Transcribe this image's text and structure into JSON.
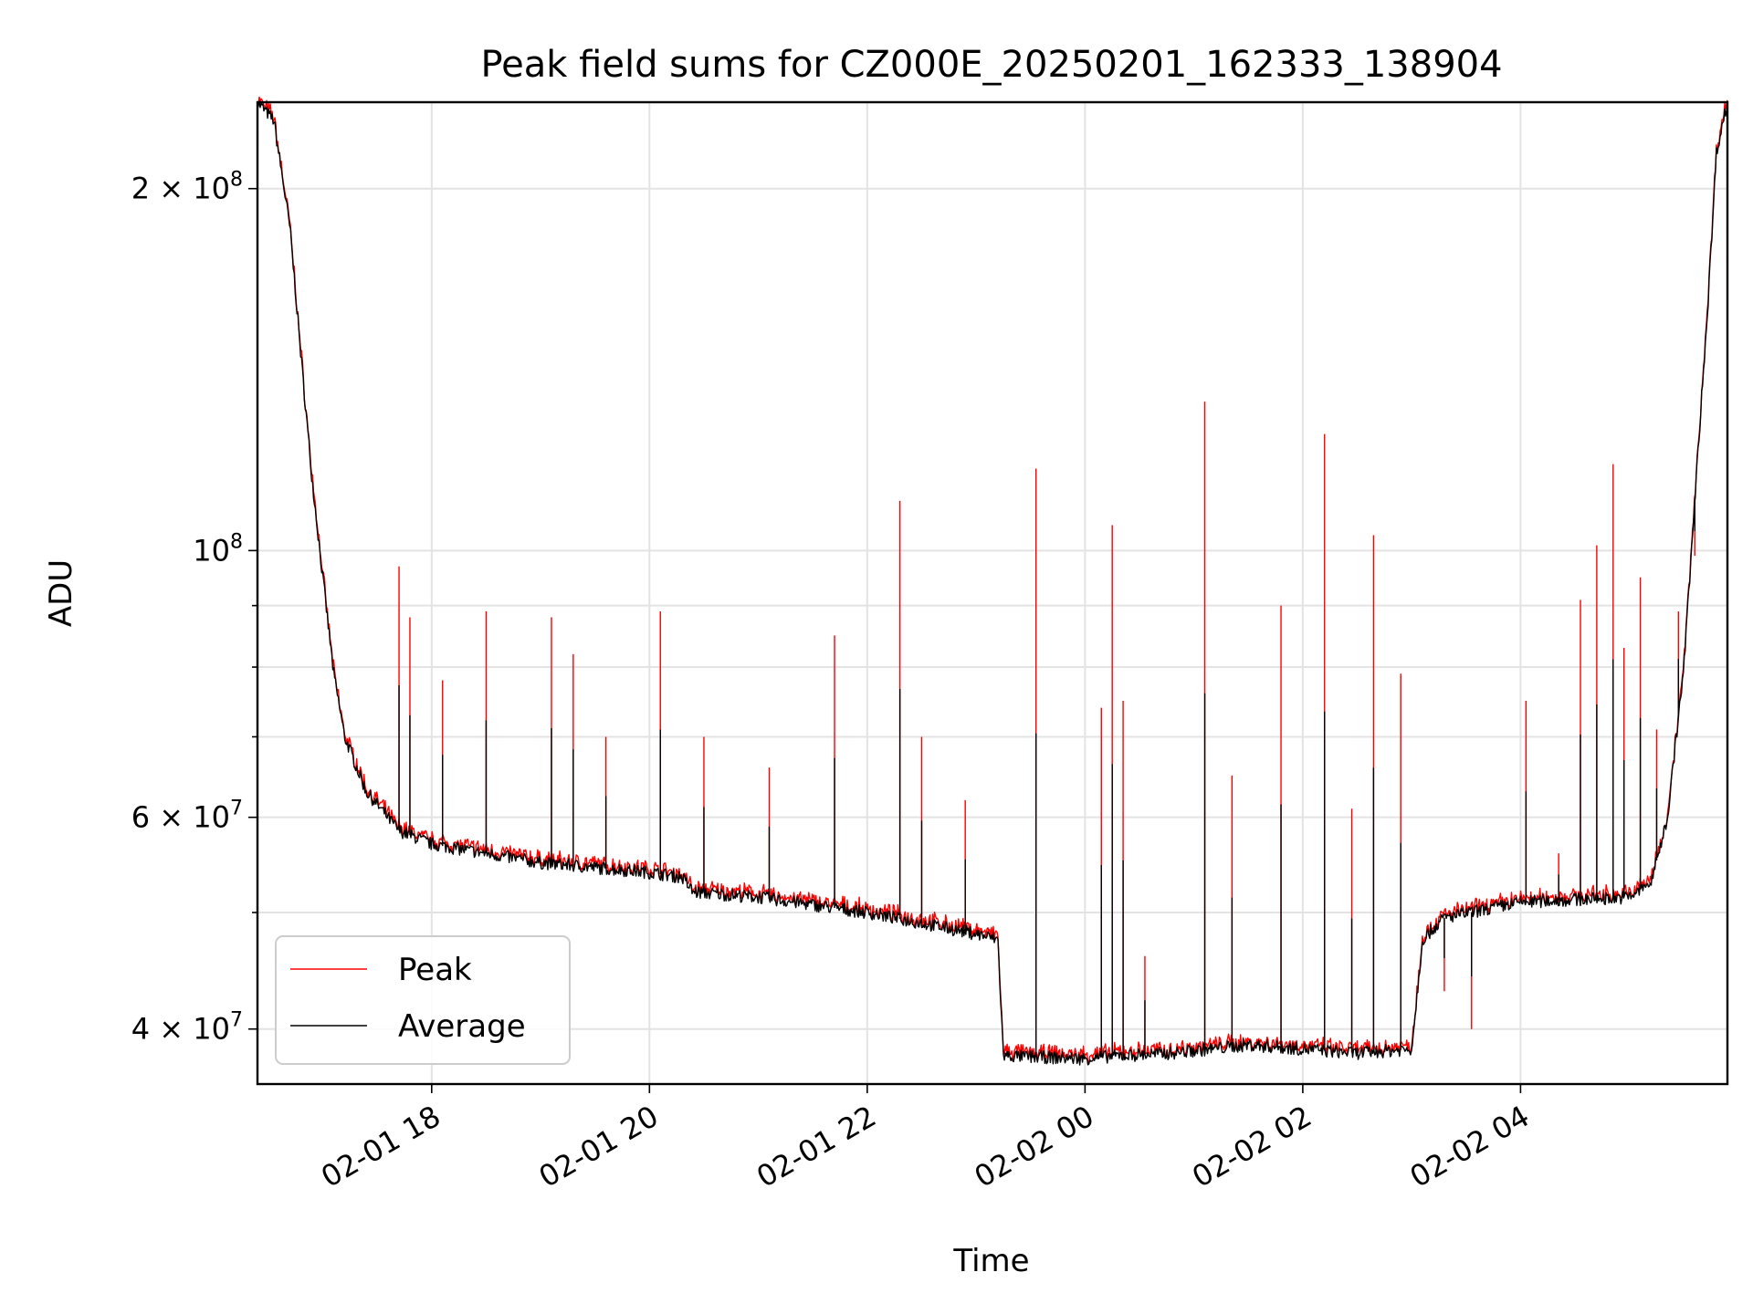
{
  "chart_data": {
    "type": "line",
    "title": "Peak field sums for CZ000E_20250201_162333_138904",
    "xlabel": "Time",
    "ylabel": "ADU",
    "yscale": "log",
    "ylim": [
      36000000,
      236000000
    ],
    "xlim_hours": [
      -1.6,
      11.9
    ],
    "x_tick_labels": [
      "02-01 18",
      "02-01 20",
      "02-01 22",
      "02-02 00",
      "02-02 02",
      "02-02 04"
    ],
    "x_tick_hours": [
      0,
      2,
      4,
      6,
      8,
      10
    ],
    "y_major_ticks": [
      {
        "value": 40000000,
        "mantissa": "4",
        "exp": "7"
      },
      {
        "value": 60000000,
        "mantissa": "6",
        "exp": "7"
      },
      {
        "value": 100000000,
        "mantissa": "",
        "exp": "8"
      },
      {
        "value": 200000000,
        "mantissa": "2",
        "exp": "8"
      }
    ],
    "y_minor_ticks": [
      50000000,
      70000000,
      80000000,
      90000000
    ],
    "grid": true,
    "legend": {
      "position": "lower-left",
      "entries": [
        "Peak",
        "Average"
      ]
    },
    "series": [
      {
        "name": "Average",
        "color": "#000000",
        "baseline": [
          [
            -1.6,
            236000000
          ],
          [
            -1.45,
            228000000
          ],
          [
            -1.3,
            185000000
          ],
          [
            -1.2,
            145000000
          ],
          [
            -1.1,
            115000000
          ],
          [
            -1.0,
            95000000
          ],
          [
            -0.9,
            79000000
          ],
          [
            -0.8,
            70000000
          ],
          [
            -0.6,
            63000000
          ],
          [
            -0.3,
            58500000
          ],
          [
            0.0,
            57000000
          ],
          [
            1.0,
            55000000
          ],
          [
            2.0,
            54000000
          ],
          [
            2.3,
            53500000
          ],
          [
            2.4,
            52000000
          ],
          [
            3.0,
            51500000
          ],
          [
            4.0,
            50000000
          ],
          [
            5.0,
            48000000
          ],
          [
            5.2,
            47500000
          ],
          [
            5.25,
            38000000
          ],
          [
            6.0,
            37800000
          ],
          [
            6.3,
            38000000
          ],
          [
            6.8,
            38200000
          ],
          [
            7.5,
            38800000
          ],
          [
            8.5,
            38200000
          ],
          [
            9.0,
            38500000
          ],
          [
            9.1,
            47500000
          ],
          [
            9.3,
            49500000
          ],
          [
            10.0,
            51000000
          ],
          [
            11.0,
            51500000
          ],
          [
            11.2,
            53000000
          ],
          [
            11.35,
            60000000
          ],
          [
            11.5,
            80000000
          ],
          [
            11.6,
            110000000
          ],
          [
            11.72,
            160000000
          ],
          [
            11.8,
            215000000
          ],
          [
            11.9,
            236000000
          ]
        ]
      },
      {
        "name": "Peak",
        "color": "#ff0000",
        "spikes": [
          [
            -0.3,
            97000000
          ],
          [
            -0.2,
            88000000
          ],
          [
            0.1,
            78000000
          ],
          [
            0.5,
            89000000
          ],
          [
            1.1,
            88000000
          ],
          [
            1.3,
            82000000
          ],
          [
            1.6,
            70000000
          ],
          [
            2.1,
            89000000
          ],
          [
            2.5,
            70000000
          ],
          [
            3.1,
            66000000
          ],
          [
            3.7,
            85000000
          ],
          [
            4.3,
            110000000
          ],
          [
            4.5,
            70000000
          ],
          [
            4.9,
            62000000
          ],
          [
            5.55,
            117000000
          ],
          [
            6.15,
            74000000
          ],
          [
            6.25,
            105000000
          ],
          [
            6.35,
            75000000
          ],
          [
            6.55,
            46000000
          ],
          [
            7.1,
            133000000
          ],
          [
            7.35,
            65000000
          ],
          [
            7.8,
            90000000
          ],
          [
            8.2,
            125000000
          ],
          [
            8.45,
            61000000
          ],
          [
            8.65,
            103000000
          ],
          [
            8.9,
            79000000
          ],
          [
            9.3,
            43000000
          ],
          [
            9.55,
            40000000
          ],
          [
            10.05,
            75000000
          ],
          [
            10.35,
            56000000
          ],
          [
            10.55,
            91000000
          ],
          [
            10.7,
            101000000
          ],
          [
            10.85,
            118000000
          ],
          [
            10.95,
            83000000
          ],
          [
            11.1,
            95000000
          ],
          [
            11.25,
            71000000
          ],
          [
            11.45,
            89000000
          ],
          [
            11.6,
            99000000
          ]
        ]
      }
    ]
  }
}
